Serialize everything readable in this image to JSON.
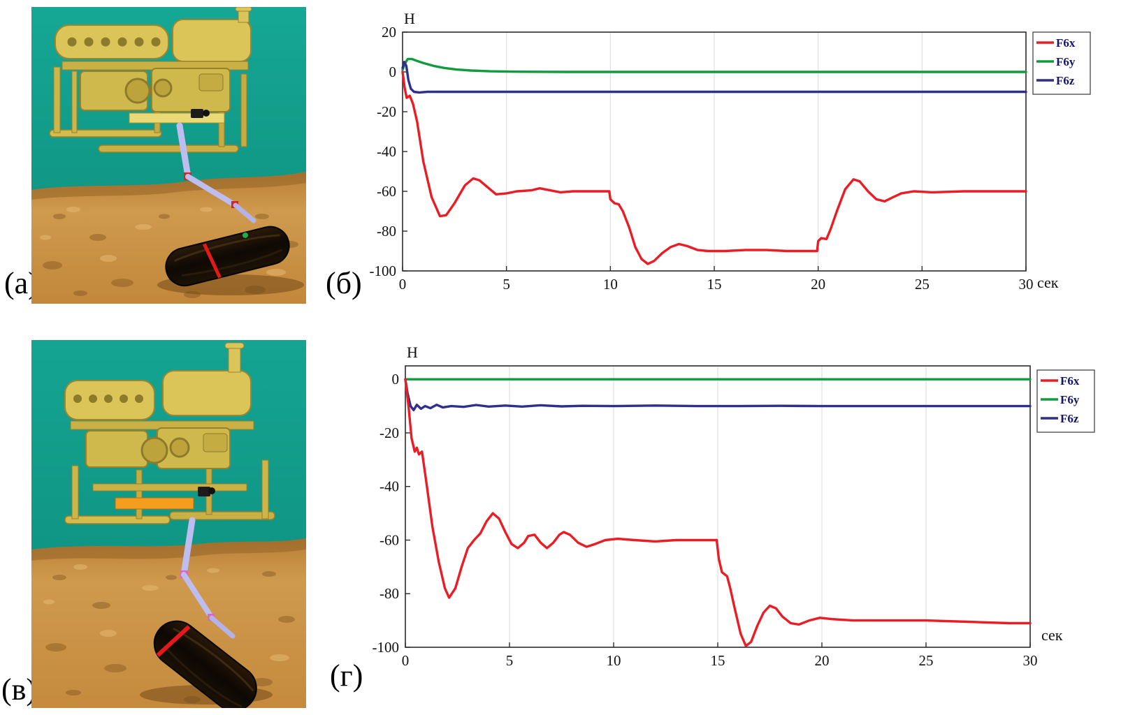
{
  "figure": {
    "panel_labels": {
      "a": "(а)",
      "b": "(б)",
      "v": "(в)",
      "g": "(г)"
    }
  },
  "colors": {
    "f6x": "#ec1c24",
    "f6y": "#109c3e",
    "f6z": "#2f2f8f",
    "water": "#16a795",
    "sand": "#cf9a4e",
    "rov_body": "#dbc458",
    "arm": "#bdbdf0",
    "pipe": "#140d05",
    "strap": "#e41a1a"
  },
  "chart_data": [
    {
      "id": "b",
      "type": "line",
      "title": "",
      "ylabel": "Н",
      "xlabel": "сек",
      "xlim": [
        0,
        30
      ],
      "ylim": [
        -100,
        20
      ],
      "xticks": [
        0,
        5,
        10,
        15,
        20,
        25,
        30
      ],
      "yticks": [
        20,
        0,
        -20,
        -40,
        -60,
        -80,
        -100
      ],
      "grid": "vertical",
      "legend_position": "top-right",
      "layout": {
        "margins": {
          "l": 56,
          "r": 96,
          "t": 34,
          "b": 46
        },
        "xlabel_dy": 24,
        "legend_dy": 0
      },
      "legend": [
        {
          "name": "F6x",
          "color": "#ec1c24"
        },
        {
          "name": "F6y",
          "color": "#109c3e"
        },
        {
          "name": "F6z",
          "color": "#2f2f8f"
        }
      ],
      "series": [
        {
          "name": "F6y",
          "color": "#109c3e",
          "points": [
            [
              0,
              1
            ],
            [
              0.1,
              4
            ],
            [
              0.25,
              6.5
            ],
            [
              0.45,
              6.5
            ],
            [
              0.7,
              5.5
            ],
            [
              1,
              4.5
            ],
            [
              1.5,
              3
            ],
            [
              2,
              2
            ],
            [
              2.6,
              1.2
            ],
            [
              3.3,
              0.7
            ],
            [
              4.2,
              0.3
            ],
            [
              5.5,
              0.1
            ],
            [
              8,
              0
            ],
            [
              15,
              0
            ],
            [
              22,
              0
            ],
            [
              30,
              0
            ]
          ]
        },
        {
          "name": "F6z",
          "color": "#2f2f8f",
          "points": [
            [
              0,
              2
            ],
            [
              0.08,
              5
            ],
            [
              0.18,
              3
            ],
            [
              0.28,
              -4
            ],
            [
              0.4,
              -8.5
            ],
            [
              0.55,
              -10
            ],
            [
              0.8,
              -10.3
            ],
            [
              1.2,
              -10
            ],
            [
              3,
              -10
            ],
            [
              10,
              -10
            ],
            [
              20,
              -10
            ],
            [
              30,
              -10
            ]
          ]
        },
        {
          "name": "F6x",
          "color": "#ec1c24",
          "points": [
            [
              0,
              0
            ],
            [
              0.1,
              -8
            ],
            [
              0.2,
              -13
            ],
            [
              0.35,
              -12
            ],
            [
              0.5,
              -16
            ],
            [
              0.7,
              -25
            ],
            [
              1,
              -45
            ],
            [
              1.4,
              -63
            ],
            [
              1.8,
              -72.5
            ],
            [
              2.1,
              -72
            ],
            [
              2.5,
              -66
            ],
            [
              3,
              -57
            ],
            [
              3.4,
              -53.5
            ],
            [
              3.7,
              -54.5
            ],
            [
              4.1,
              -58
            ],
            [
              4.5,
              -61.5
            ],
            [
              5,
              -61
            ],
            [
              5.5,
              -60
            ],
            [
              6.2,
              -59.5
            ],
            [
              6.6,
              -58.5
            ],
            [
              7.1,
              -59.5
            ],
            [
              7.6,
              -60.5
            ],
            [
              8.2,
              -60
            ],
            [
              9,
              -60
            ],
            [
              9.95,
              -60
            ],
            [
              10,
              -64
            ],
            [
              10.2,
              -66
            ],
            [
              10.4,
              -66.5
            ],
            [
              10.6,
              -70
            ],
            [
              10.9,
              -78
            ],
            [
              11.2,
              -88
            ],
            [
              11.5,
              -94
            ],
            [
              11.8,
              -96.5
            ],
            [
              12.1,
              -95
            ],
            [
              12.5,
              -91
            ],
            [
              12.9,
              -88
            ],
            [
              13.3,
              -86.5
            ],
            [
              13.7,
              -87.5
            ],
            [
              14.2,
              -89.5
            ],
            [
              14.7,
              -90
            ],
            [
              15.5,
              -90
            ],
            [
              16.5,
              -89.5
            ],
            [
              17.5,
              -89.5
            ],
            [
              18.5,
              -90
            ],
            [
              19.5,
              -90
            ],
            [
              19.95,
              -90
            ],
            [
              20,
              -85
            ],
            [
              20.15,
              -83.5
            ],
            [
              20.4,
              -84
            ],
            [
              20.6,
              -79
            ],
            [
              20.9,
              -70
            ],
            [
              21.3,
              -59
            ],
            [
              21.7,
              -54
            ],
            [
              22,
              -55
            ],
            [
              22.4,
              -60
            ],
            [
              22.8,
              -64
            ],
            [
              23.2,
              -65
            ],
            [
              23.6,
              -63
            ],
            [
              24,
              -61
            ],
            [
              24.6,
              -60
            ],
            [
              25.5,
              -60.5
            ],
            [
              27,
              -60
            ],
            [
              30,
              -60
            ]
          ]
        }
      ]
    },
    {
      "id": "g",
      "type": "line",
      "title": "",
      "ylabel": "Н",
      "xlabel": "сек",
      "xlim": [
        0,
        30
      ],
      "ylim": [
        -100,
        5
      ],
      "xticks": [
        0,
        5,
        10,
        15,
        20,
        25,
        30
      ],
      "yticks": [
        0,
        -20,
        -40,
        -60,
        -80,
        -100
      ],
      "grid": "vertical",
      "legend_position": "top-right",
      "layout": {
        "margins": {
          "l": 60,
          "r": 96,
          "t": 32,
          "b": 70
        },
        "xlabel_dy": -10,
        "legend_dy": 6
      },
      "legend": [
        {
          "name": "F6x",
          "color": "#ec1c24"
        },
        {
          "name": "F6y",
          "color": "#109c3e"
        },
        {
          "name": "F6z",
          "color": "#2f2f8f"
        }
      ],
      "series": [
        {
          "name": "F6y",
          "color": "#109c3e",
          "points": [
            [
              0,
              0
            ],
            [
              5,
              0
            ],
            [
              10,
              0
            ],
            [
              15,
              0
            ],
            [
              20,
              0
            ],
            [
              25,
              0
            ],
            [
              30,
              0
            ]
          ]
        },
        {
          "name": "F6z",
          "color": "#2f2f8f",
          "points": [
            [
              0,
              0
            ],
            [
              0.1,
              -5
            ],
            [
              0.25,
              -10
            ],
            [
              0.4,
              -11.5
            ],
            [
              0.55,
              -9.5
            ],
            [
              0.75,
              -11
            ],
            [
              0.95,
              -10
            ],
            [
              1.2,
              -10.8
            ],
            [
              1.5,
              -9.5
            ],
            [
              1.8,
              -10.5
            ],
            [
              2.2,
              -10
            ],
            [
              2.8,
              -10.3
            ],
            [
              3.4,
              -9.6
            ],
            [
              4,
              -10.2
            ],
            [
              4.8,
              -9.8
            ],
            [
              5.6,
              -10.2
            ],
            [
              6.5,
              -9.7
            ],
            [
              7.5,
              -10.1
            ],
            [
              8.5,
              -9.9
            ],
            [
              10,
              -10
            ],
            [
              12,
              -9.8
            ],
            [
              14,
              -10
            ],
            [
              16,
              -10
            ],
            [
              18,
              -9.9
            ],
            [
              20,
              -10
            ],
            [
              22,
              -10
            ],
            [
              24,
              -10
            ],
            [
              26,
              -10
            ],
            [
              28,
              -10
            ],
            [
              30,
              -10
            ]
          ]
        },
        {
          "name": "F6x",
          "color": "#ec1c24",
          "points": [
            [
              0,
              0
            ],
            [
              0.15,
              -10
            ],
            [
              0.3,
              -22
            ],
            [
              0.45,
              -27
            ],
            [
              0.55,
              -25.5
            ],
            [
              0.65,
              -28
            ],
            [
              0.8,
              -27
            ],
            [
              1,
              -38
            ],
            [
              1.3,
              -55
            ],
            [
              1.6,
              -68
            ],
            [
              1.9,
              -78
            ],
            [
              2.1,
              -81.5
            ],
            [
              2.4,
              -78
            ],
            [
              2.7,
              -70
            ],
            [
              3,
              -63
            ],
            [
              3.3,
              -60
            ],
            [
              3.6,
              -57.5
            ],
            [
              3.9,
              -53
            ],
            [
              4.2,
              -50
            ],
            [
              4.5,
              -52
            ],
            [
              4.8,
              -57
            ],
            [
              5.1,
              -61.5
            ],
            [
              5.4,
              -63
            ],
            [
              5.7,
              -61
            ],
            [
              5.9,
              -58.5
            ],
            [
              6.2,
              -58
            ],
            [
              6.5,
              -61
            ],
            [
              6.8,
              -63
            ],
            [
              7.1,
              -61
            ],
            [
              7.4,
              -58
            ],
            [
              7.6,
              -57
            ],
            [
              7.9,
              -58
            ],
            [
              8.3,
              -61
            ],
            [
              8.7,
              -62.5
            ],
            [
              9.1,
              -61.5
            ],
            [
              9.6,
              -60
            ],
            [
              10.2,
              -59.5
            ],
            [
              11,
              -60
            ],
            [
              12,
              -60.5
            ],
            [
              13,
              -60
            ],
            [
              14,
              -60
            ],
            [
              14.95,
              -60
            ],
            [
              15.05,
              -67
            ],
            [
              15.2,
              -72
            ],
            [
              15.45,
              -73.5
            ],
            [
              15.6,
              -78
            ],
            [
              15.8,
              -85
            ],
            [
              16.1,
              -95
            ],
            [
              16.35,
              -99.5
            ],
            [
              16.6,
              -98
            ],
            [
              16.9,
              -92
            ],
            [
              17.2,
              -87
            ],
            [
              17.5,
              -84.5
            ],
            [
              17.8,
              -85.5
            ],
            [
              18.1,
              -88.5
            ],
            [
              18.5,
              -91
            ],
            [
              18.9,
              -91.5
            ],
            [
              19.4,
              -90
            ],
            [
              19.9,
              -89
            ],
            [
              20.5,
              -89.5
            ],
            [
              21.5,
              -90
            ],
            [
              23,
              -90
            ],
            [
              25,
              -90
            ],
            [
              27,
              -90.5
            ],
            [
              29,
              -91
            ],
            [
              30,
              -91
            ]
          ]
        }
      ]
    }
  ]
}
